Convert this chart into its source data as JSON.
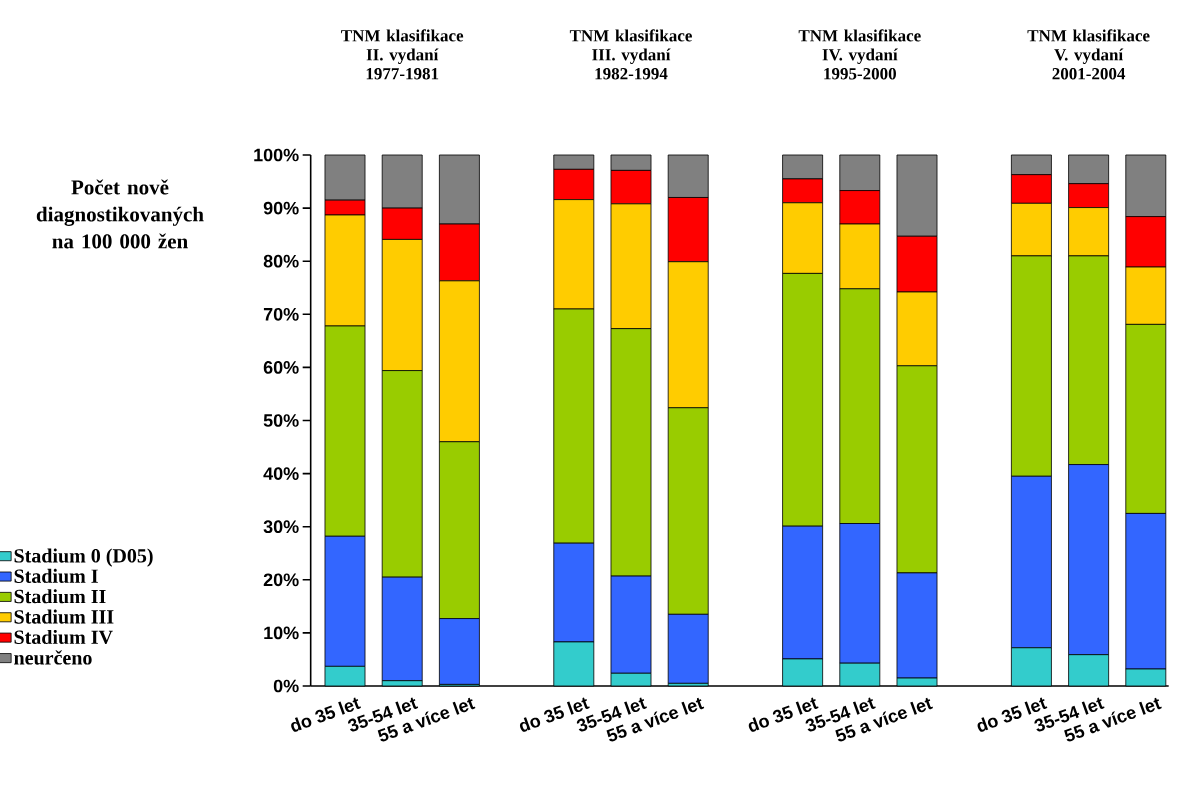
{
  "chart_data": {
    "type": "bar",
    "stacked": true,
    "ylabel": "Počet nově diagnostikovaných na 100 000 žen",
    "annotations": [
      "TNM klasifikace II. vydaní 1977-1981",
      "TNM klasifikace III. vydaní 1982-1994",
      "TNM klasifikace IV. vydaní 1995-2000",
      "TNM klasifikace V. vydaní 2001-2004"
    ],
    "categories": [
      "do 35 let",
      "35-54 let",
      "55 a více let",
      null,
      "do 35 let",
      "35-54 let",
      "55 a více let",
      null,
      "do 35 let",
      "35-54 let",
      "55 a více let",
      null,
      "do 35 let",
      "35-54 let",
      "55 a více let"
    ],
    "series": [
      {
        "name": "Stadium 0 (D05)",
        "color": "#33cccc",
        "values": [
          3.7,
          1.0,
          0.3,
          null,
          8.3,
          2.4,
          0.5,
          null,
          5.1,
          4.3,
          1.5,
          null,
          7.2,
          5.9,
          3.2
        ]
      },
      {
        "name": "Stadium I",
        "color": "#3366ff",
        "values": [
          24.5,
          19.5,
          12.4,
          null,
          18.6,
          18.3,
          13.0,
          null,
          25.0,
          26.3,
          19.8,
          null,
          32.3,
          35.8,
          29.3
        ]
      },
      {
        "name": "Stadium II",
        "color": "#99cc00",
        "values": [
          39.6,
          38.9,
          33.3,
          null,
          44.1,
          46.6,
          38.9,
          null,
          47.6,
          44.2,
          39.0,
          null,
          41.5,
          39.3,
          35.6
        ]
      },
      {
        "name": "Stadium III",
        "color": "#ffcc00",
        "values": [
          20.9,
          24.7,
          30.3,
          null,
          20.6,
          23.5,
          27.5,
          null,
          13.3,
          12.2,
          13.9,
          null,
          9.9,
          9.1,
          10.8
        ]
      },
      {
        "name": "Stadium IV",
        "color": "#ff0000",
        "values": [
          2.8,
          5.9,
          10.7,
          null,
          5.7,
          6.3,
          12.1,
          null,
          4.5,
          6.3,
          10.5,
          null,
          5.4,
          4.5,
          9.5
        ]
      },
      {
        "name": "neurčeno",
        "color": "#808080",
        "values": [
          8.5,
          10.0,
          13.0,
          null,
          2.7,
          2.9,
          8.0,
          null,
          4.5,
          6.7,
          15.3,
          null,
          3.7,
          5.4,
          11.6
        ]
      }
    ],
    "ylim": [
      0,
      100
    ],
    "yticks": [
      {
        "value": 0,
        "label": "0%"
      },
      {
        "value": 10,
        "label": "10%"
      },
      {
        "value": 20,
        "label": "20%"
      },
      {
        "value": 30,
        "label": "30%"
      },
      {
        "value": 40,
        "label": "40%"
      },
      {
        "value": 50,
        "label": "50%"
      },
      {
        "value": 60,
        "label": "60%"
      },
      {
        "value": 70,
        "label": "70%"
      },
      {
        "value": 80,
        "label": "80%"
      },
      {
        "value": 90,
        "label": "90%"
      },
      {
        "value": 100,
        "label": "100%"
      }
    ],
    "grid": false,
    "legend": "left"
  }
}
